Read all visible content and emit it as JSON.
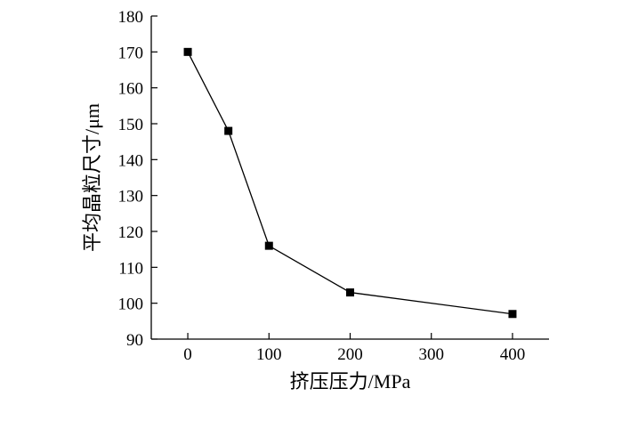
{
  "chart_data": {
    "type": "line",
    "title": "",
    "xlabel": "挤压压力/MPa",
    "ylabel": "平均晶粒尺寸/μm",
    "xlim": [
      -45,
      445
    ],
    "ylim": [
      90,
      180
    ],
    "x_ticks": [
      0,
      100,
      200,
      300,
      400
    ],
    "y_ticks": [
      90,
      100,
      110,
      120,
      130,
      140,
      150,
      160,
      170,
      180
    ],
    "grid": false,
    "series": [
      {
        "marker": "square",
        "color": "#000000",
        "points": [
          {
            "x": 0,
            "y": 170
          },
          {
            "x": 50,
            "y": 148
          },
          {
            "x": 100,
            "y": 116
          },
          {
            "x": 200,
            "y": 103
          },
          {
            "x": 400,
            "y": 97
          }
        ]
      }
    ]
  }
}
